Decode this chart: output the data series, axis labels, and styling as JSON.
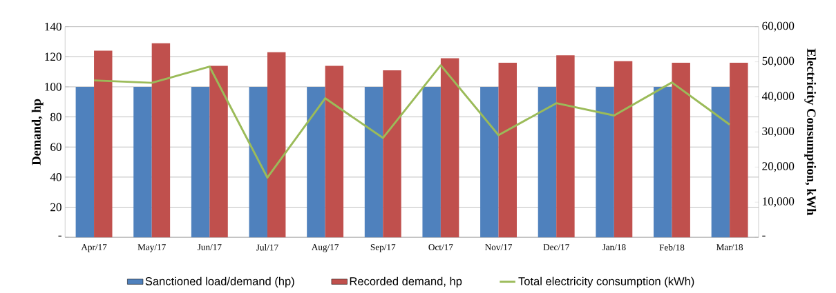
{
  "chart_data": {
    "type": "bar",
    "ylabel": "Demand, hp",
    "y2label": "Electricity Consumption, kWh",
    "categories": [
      "Apr/17",
      "May/17",
      "Jun/17",
      "Jul/17",
      "Aug/17",
      "Sep/17",
      "Oct/17",
      "Nov/17",
      "Dec/17",
      "Jan/18",
      "Feb/18",
      "Mar/18"
    ],
    "series": [
      {
        "name": "Sanctioned load/demand (hp)",
        "color": "#4f81bd",
        "values": [
          100,
          100,
          100,
          100,
          100,
          100,
          100,
          100,
          100,
          100,
          100,
          100
        ]
      },
      {
        "name": "Recorded demand, hp",
        "color": "#c0504d",
        "values": [
          124,
          129,
          114,
          123,
          114,
          111,
          119,
          116,
          121,
          117,
          116,
          116
        ]
      },
      {
        "name": "Total electricity consumption (kWh)",
        "type": "line",
        "axis": "y2",
        "color": "#9bbb59",
        "values": [
          44700,
          44000,
          48600,
          17000,
          39600,
          28300,
          49000,
          29100,
          38200,
          34700,
          44100,
          32100
        ]
      }
    ],
    "ylim": [
      0,
      140
    ],
    "yticks": [
      {
        "value": 0,
        "label": "-"
      },
      20,
      40,
      60,
      80,
      100,
      120,
      140
    ],
    "y2lim": [
      0,
      60000
    ],
    "y2ticks": [
      {
        "value": 0,
        "label": "-"
      },
      {
        "value": 10000,
        "label": "10,000"
      },
      {
        "value": 20000,
        "label": "20,000"
      },
      {
        "value": 30000,
        "label": "30,000"
      },
      {
        "value": 40000,
        "label": "40,000"
      },
      {
        "value": 50000,
        "label": "50,000"
      },
      {
        "value": 60000,
        "label": "60,000"
      }
    ],
    "grid": "y",
    "legend": "bottom"
  }
}
